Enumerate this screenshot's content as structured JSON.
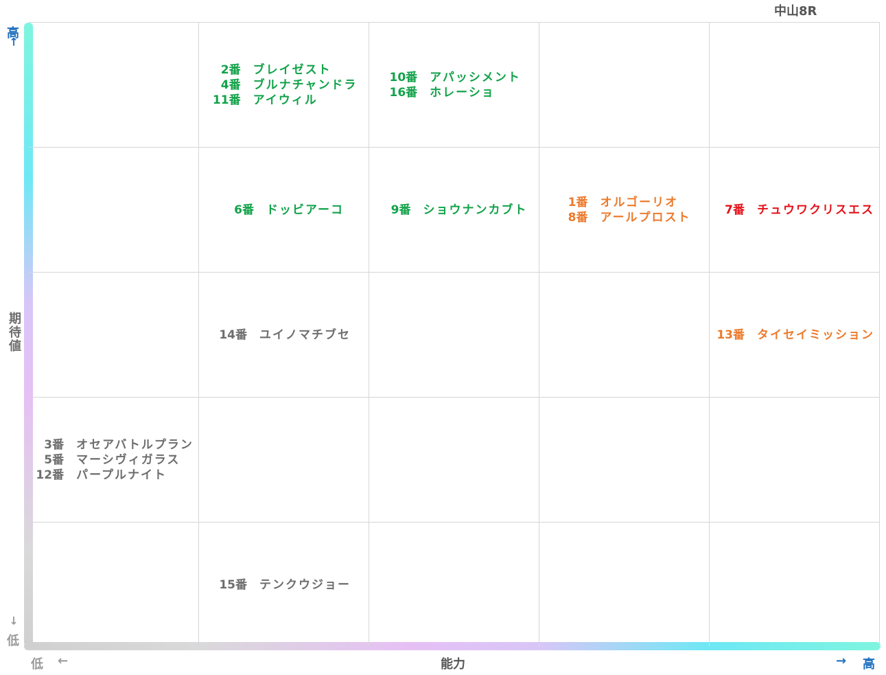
{
  "header": {
    "race": "中山8R"
  },
  "axes": {
    "y_label": "期待値",
    "x_label": "能力",
    "high": "高",
    "low": "低",
    "arrow_left": "←",
    "arrow_right": "→"
  },
  "chart_data": {
    "type": "table",
    "title": "中山8R",
    "xlabel": "能力",
    "ylabel": "期待値",
    "columns": [
      "1",
      "2",
      "3",
      "4",
      "5"
    ],
    "rows_top_to_bottom": [
      "5",
      "4",
      "3",
      "2",
      "1"
    ],
    "cells": [
      {
        "row": 0,
        "col": 1,
        "color": "#12a24a",
        "entries": [
          {
            "num": "2番",
            "name": "ブレイゼスト"
          },
          {
            "num": "4番",
            "name": "ブルナチャンドラ"
          },
          {
            "num": "11番",
            "name": "アイウィル"
          }
        ]
      },
      {
        "row": 0,
        "col": 2,
        "color": "#12a24a",
        "entries": [
          {
            "num": "10番",
            "name": "アパッシメント"
          },
          {
            "num": "16番",
            "name": "ホレーショ"
          }
        ]
      },
      {
        "row": 1,
        "col": 1,
        "color": "#12a24a",
        "entries": [
          {
            "num": "6番",
            "name": "ドッビアーコ"
          }
        ]
      },
      {
        "row": 1,
        "col": 2,
        "color": "#12a24a",
        "entries": [
          {
            "num": "9番",
            "name": "ショウナンカブト"
          }
        ]
      },
      {
        "row": 1,
        "col": 3,
        "color": "#ec7a2c",
        "entries": [
          {
            "num": "1番",
            "name": "オルゴーリオ"
          },
          {
            "num": "8番",
            "name": "アールプロスト"
          }
        ]
      },
      {
        "row": 1,
        "col": 4,
        "color": "#e3121b",
        "entries": [
          {
            "num": "7番",
            "name": "チュウワクリスエス"
          }
        ]
      },
      {
        "row": 2,
        "col": 1,
        "color": "#6d6d6d",
        "entries": [
          {
            "num": "14番",
            "name": "ユイノマチブセ"
          }
        ]
      },
      {
        "row": 2,
        "col": 4,
        "color": "#ec7a2c",
        "entries": [
          {
            "num": "13番",
            "name": "タイセイミッション"
          }
        ]
      },
      {
        "row": 3,
        "col": 0,
        "color": "#6d6d6d",
        "entries": [
          {
            "num": "3番",
            "name": "オセアバトルプラン"
          },
          {
            "num": "5番",
            "name": "マーシヴィガラス"
          },
          {
            "num": "12番",
            "name": "パープルナイト"
          }
        ]
      },
      {
        "row": 4,
        "col": 1,
        "color": "#6d6d6d",
        "entries": [
          {
            "num": "15番",
            "name": "テンクウジョー"
          }
        ]
      }
    ]
  }
}
